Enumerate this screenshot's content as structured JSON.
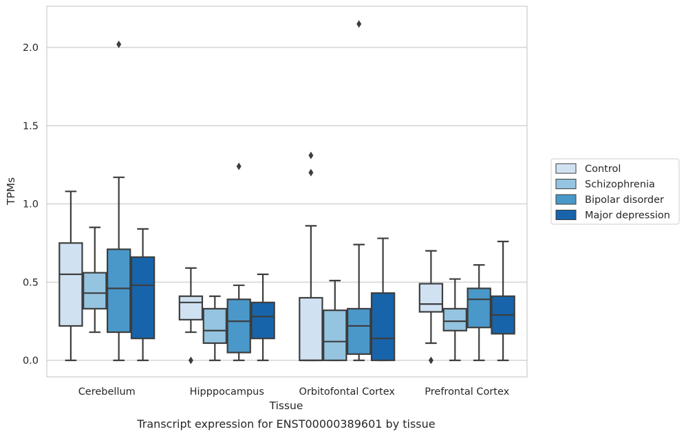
{
  "chart_data": {
    "type": "box",
    "caption": "Transcript expression for ENST00000389601 by tissue",
    "xlabel": "Tissue",
    "ylabel": "TPMs",
    "ylim": [
      -0.1,
      2.26
    ],
    "yticks": [
      0.0,
      0.5,
      1.0,
      1.5,
      2.0
    ],
    "ytick_labels": [
      "0.0",
      "0.5",
      "1.0",
      "1.5",
      "2.0"
    ],
    "grid": "horizontal",
    "legend_position": "right",
    "categories": [
      "Cerebellum",
      "Hipppocampus",
      "Orbitofontal Cortex",
      "Prefrontal Cortex"
    ],
    "series": [
      {
        "name": "Control",
        "color": "#d0e1f2",
        "boxes": [
          {
            "whisker_low": 0.0,
            "q1": 0.22,
            "median": 0.55,
            "q3": 0.75,
            "whisker_high": 1.08,
            "outliers": []
          },
          {
            "whisker_low": 0.18,
            "q1": 0.26,
            "median": 0.37,
            "q3": 0.41,
            "whisker_high": 0.59,
            "outliers": [
              0.0
            ]
          },
          {
            "whisker_low": 0.0,
            "q1": 0.0,
            "median": 0.0,
            "q3": 0.4,
            "whisker_high": 0.86,
            "outliers": [
              1.2,
              1.31
            ]
          },
          {
            "whisker_low": 0.11,
            "q1": 0.31,
            "median": 0.36,
            "q3": 0.49,
            "whisker_high": 0.7,
            "outliers": [
              0.0
            ]
          }
        ]
      },
      {
        "name": "Schizophrenia",
        "color": "#94c4df",
        "boxes": [
          {
            "whisker_low": 0.18,
            "q1": 0.33,
            "median": 0.43,
            "q3": 0.56,
            "whisker_high": 0.85,
            "outliers": []
          },
          {
            "whisker_low": 0.0,
            "q1": 0.11,
            "median": 0.19,
            "q3": 0.33,
            "whisker_high": 0.41,
            "outliers": []
          },
          {
            "whisker_low": 0.0,
            "q1": 0.0,
            "median": 0.12,
            "q3": 0.32,
            "whisker_high": 0.51,
            "outliers": []
          },
          {
            "whisker_low": 0.0,
            "q1": 0.19,
            "median": 0.25,
            "q3": 0.33,
            "whisker_high": 0.52,
            "outliers": []
          }
        ]
      },
      {
        "name": "Bipolar disorder",
        "color": "#4a98c9",
        "boxes": [
          {
            "whisker_low": 0.0,
            "q1": 0.18,
            "median": 0.46,
            "q3": 0.71,
            "whisker_high": 1.17,
            "outliers": [
              2.02
            ]
          },
          {
            "whisker_low": 0.0,
            "q1": 0.05,
            "median": 0.25,
            "q3": 0.39,
            "whisker_high": 0.48,
            "outliers": [
              1.24
            ]
          },
          {
            "whisker_low": 0.0,
            "q1": 0.04,
            "median": 0.22,
            "q3": 0.33,
            "whisker_high": 0.74,
            "outliers": [
              2.15
            ]
          },
          {
            "whisker_low": 0.0,
            "q1": 0.21,
            "median": 0.39,
            "q3": 0.46,
            "whisker_high": 0.61,
            "outliers": []
          }
        ]
      },
      {
        "name": "Major depression",
        "color": "#1764ab",
        "boxes": [
          {
            "whisker_low": 0.0,
            "q1": 0.14,
            "median": 0.48,
            "q3": 0.66,
            "whisker_high": 0.84,
            "outliers": []
          },
          {
            "whisker_low": 0.0,
            "q1": 0.14,
            "median": 0.28,
            "q3": 0.37,
            "whisker_high": 0.55,
            "outliers": []
          },
          {
            "whisker_low": 0.0,
            "q1": 0.0,
            "median": 0.14,
            "q3": 0.43,
            "whisker_high": 0.78,
            "outliers": []
          },
          {
            "whisker_low": 0.0,
            "q1": 0.17,
            "median": 0.29,
            "q3": 0.41,
            "whisker_high": 0.76,
            "outliers": []
          }
        ]
      }
    ]
  }
}
